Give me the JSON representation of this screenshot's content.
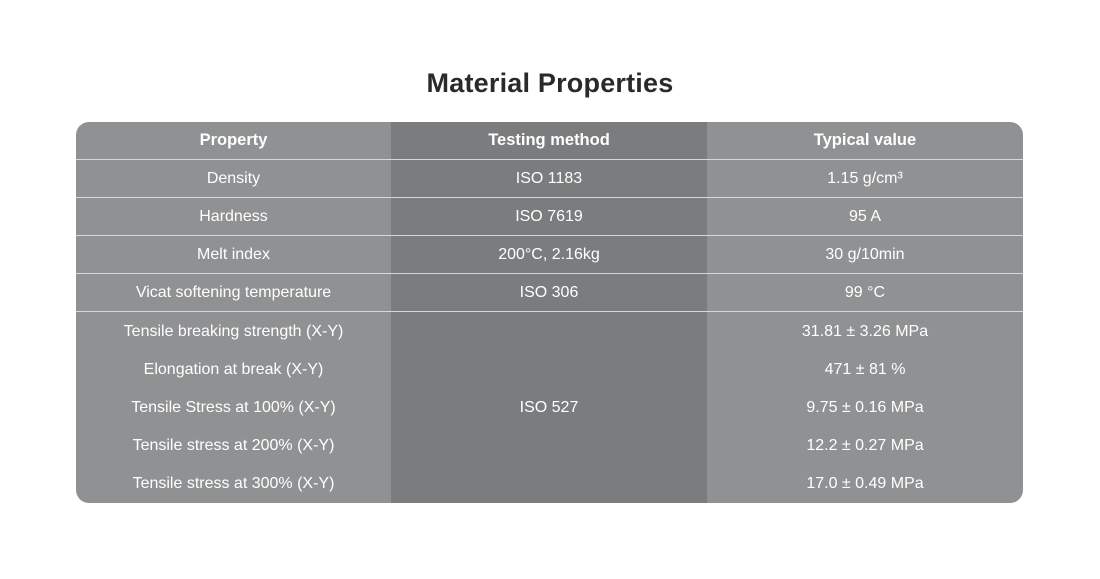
{
  "title": "Material Properties",
  "table": {
    "headers": [
      "Property",
      "Testing method",
      "Typical value"
    ],
    "rows": [
      {
        "property": "Density",
        "method": "ISO 1183",
        "value": "1.15 g/cm³"
      },
      {
        "property": "Hardness",
        "method": "ISO 7619",
        "value": "95 A"
      },
      {
        "property": "Melt index",
        "method": "200°C, 2.16kg",
        "value": "30 g/10min"
      },
      {
        "property": "Vicat softening temperature",
        "method": "ISO 306",
        "value": "99 °C"
      },
      {
        "property": "Tensile breaking strength (X-Y)",
        "method": "",
        "value": "31.81 ± 3.26 MPa"
      },
      {
        "property": "Elongation at break (X-Y)",
        "method": "",
        "value": "471 ± 81 %"
      },
      {
        "property": "Tensile Stress at 100% (X-Y)",
        "method": "",
        "value": "9.75 ± 0.16 MPa"
      },
      {
        "property": "Tensile stress at 200% (X-Y)",
        "method": "",
        "value": "12.2 ± 0.27 MPa"
      },
      {
        "property": "Tensile stress at 300% (X-Y)",
        "method": "",
        "value": "17.0 ± 0.49 MPa"
      }
    ],
    "merged_method": "ISO 527"
  }
}
